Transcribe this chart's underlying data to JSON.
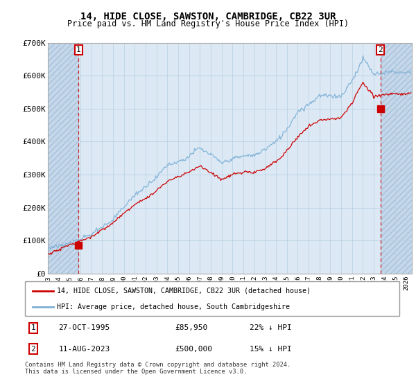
{
  "title": "14, HIDE CLOSE, SAWSTON, CAMBRIDGE, CB22 3UR",
  "subtitle": "Price paid vs. HM Land Registry's House Price Index (HPI)",
  "ylim": [
    0,
    700000
  ],
  "yticks": [
    0,
    100000,
    200000,
    300000,
    400000,
    500000,
    600000,
    700000
  ],
  "ytick_labels": [
    "£0",
    "£100K",
    "£200K",
    "£300K",
    "£400K",
    "£500K",
    "£600K",
    "£700K"
  ],
  "xlim_start": 1993.0,
  "xlim_end": 2026.5,
  "sale1_x": 1995.82,
  "sale1_y": 85950,
  "sale2_x": 2023.61,
  "sale2_y": 500000,
  "sale1_label": "27-OCT-1995",
  "sale1_price": "£85,950",
  "sale1_hpi": "22% ↓ HPI",
  "sale2_label": "11-AUG-2023",
  "sale2_price": "£500,000",
  "sale2_hpi": "15% ↓ HPI",
  "legend_line1": "14, HIDE CLOSE, SAWSTON, CAMBRIDGE, CB22 3UR (detached house)",
  "legend_line2": "HPI: Average price, detached house, South Cambridgeshire",
  "footer": "Contains HM Land Registry data © Crown copyright and database right 2024.\nThis data is licensed under the Open Government Licence v3.0.",
  "hpi_color": "#7bafd4",
  "price_color": "#cc0000",
  "bg_plot": "#dce9f5",
  "bg_hatch": "#c5d8eb",
  "grid_color": "#b8cfe0",
  "dashed_vline_color": "#cc0000",
  "hpi_nodes_x": [
    1993,
    1994,
    1995,
    1996,
    1997,
    1998,
    1999,
    2000,
    2001,
    2002,
    2003,
    2004,
    2005,
    2006,
    2007,
    2008,
    2009,
    2010,
    2011,
    2012,
    2013,
    2014,
    2015,
    2016,
    2017,
    2018,
    2019,
    2020,
    2021,
    2022,
    2023,
    2024,
    2025,
    2026
  ],
  "hpi_nodes_y": [
    72000,
    82000,
    92000,
    105000,
    120000,
    140000,
    165000,
    200000,
    230000,
    255000,
    280000,
    315000,
    335000,
    355000,
    375000,
    355000,
    330000,
    345000,
    355000,
    355000,
    370000,
    395000,
    430000,
    480000,
    510000,
    530000,
    530000,
    530000,
    580000,
    650000,
    600000,
    610000,
    615000,
    615000
  ],
  "price_nodes_x": [
    1993,
    1994,
    1995,
    1996,
    1997,
    1998,
    1999,
    2000,
    2001,
    2002,
    2003,
    2004,
    2005,
    2006,
    2007,
    2008,
    2009,
    2010,
    2011,
    2012,
    2013,
    2014,
    2015,
    2016,
    2017,
    2018,
    2019,
    2020,
    2021,
    2022,
    2023,
    2024,
    2025,
    2026
  ],
  "price_nodes_y": [
    60000,
    70000,
    83000,
    96000,
    108000,
    126000,
    148000,
    179000,
    205000,
    228000,
    252000,
    282000,
    298000,
    314000,
    330000,
    312000,
    290000,
    305000,
    314000,
    316000,
    330000,
    352000,
    383000,
    427000,
    454000,
    472000,
    472000,
    472000,
    517000,
    580000,
    535000,
    543000,
    548000,
    548000
  ],
  "hpi_noise_scale": 8000,
  "price_noise_scale": 5000
}
